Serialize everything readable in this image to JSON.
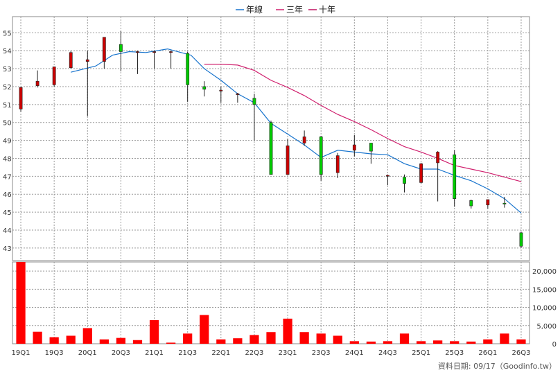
{
  "chart_data": {
    "type": "candlestick+line+bar",
    "legend": {
      "position": "top",
      "items": [
        {
          "name": "年線",
          "color": "#1874cd"
        },
        {
          "name": "三年",
          "color": "#d0206e"
        },
        {
          "name": "十年",
          "color": "#c01060"
        }
      ]
    },
    "colors": {
      "up": "#00cc00",
      "down": "#cc0000",
      "volume": "#ff0000",
      "grid": "#999999",
      "line_1y": "#1874cd",
      "line_3y": "#d0206e"
    },
    "x_ticks": [
      "19Q1",
      "19Q3",
      "20Q1",
      "20Q3",
      "21Q1",
      "21Q3",
      "22Q1",
      "22Q3",
      "23Q1",
      "23Q3",
      "24Q1",
      "24Q3",
      "25Q1",
      "25Q3",
      "26Q1",
      "26Q3"
    ],
    "price_axis": {
      "ylim": [
        42.3,
        55.9
      ],
      "ticks": [
        43,
        44,
        45,
        46,
        47,
        48,
        49,
        50,
        51,
        52,
        53,
        54,
        55
      ]
    },
    "volume_axis": {
      "ylim": [
        0,
        22500
      ],
      "ticks": [
        0,
        5000,
        10000,
        15000,
        20000
      ],
      "tick_labels": [
        "0",
        "5,000",
        "10,000",
        "15,000",
        "20,000"
      ]
    },
    "candles": [
      {
        "o": 51.95,
        "h": 51.95,
        "l": 50.6,
        "c": 50.75
      },
      {
        "o": 52.3,
        "h": 52.9,
        "l": 51.95,
        "c": 52.05
      },
      {
        "o": 53.1,
        "h": 53.1,
        "l": 52.0,
        "c": 52.1
      },
      {
        "o": 53.9,
        "h": 54.0,
        "l": 53.0,
        "c": 53.05
      },
      {
        "o": 53.5,
        "h": 54.0,
        "l": 50.35,
        "c": 53.4
      },
      {
        "o": 54.75,
        "h": 54.75,
        "l": 53.0,
        "c": 53.4
      },
      {
        "o": 53.95,
        "h": 55.1,
        "l": 52.85,
        "c": 54.35
      },
      {
        "o": 53.95,
        "h": 54.0,
        "l": 52.7,
        "c": 53.9
      },
      {
        "o": 53.95,
        "h": 54.0,
        "l": 53.0,
        "c": 53.9
      },
      {
        "o": 53.95,
        "h": 54.0,
        "l": 53.0,
        "c": 53.9
      },
      {
        "o": 52.1,
        "h": 53.95,
        "l": 51.15,
        "c": 53.85
      },
      {
        "o": 51.85,
        "h": 52.3,
        "l": 51.45,
        "c": 52.0
      },
      {
        "o": 51.8,
        "h": 52.0,
        "l": 51.1,
        "c": 51.75
      },
      {
        "o": 51.6,
        "h": 51.65,
        "l": 51.1,
        "c": 51.55
      },
      {
        "o": 51.0,
        "h": 51.6,
        "l": 49.0,
        "c": 51.35
      },
      {
        "o": 47.1,
        "h": 50.1,
        "l": 47.1,
        "c": 50.0
      },
      {
        "o": 48.7,
        "h": 49.1,
        "l": 47.1,
        "c": 47.1
      },
      {
        "o": 49.2,
        "h": 49.55,
        "l": 48.7,
        "c": 48.85
      },
      {
        "o": 47.1,
        "h": 49.25,
        "l": 46.75,
        "c": 49.2
      },
      {
        "o": 48.15,
        "h": 48.3,
        "l": 46.9,
        "c": 47.2
      },
      {
        "o": 48.75,
        "h": 49.3,
        "l": 48.1,
        "c": 48.45
      },
      {
        "o": 48.4,
        "h": 48.85,
        "l": 47.7,
        "c": 48.85
      },
      {
        "o": 47.05,
        "h": 47.1,
        "l": 46.5,
        "c": 47.0
      },
      {
        "o": 46.6,
        "h": 47.1,
        "l": 46.1,
        "c": 46.95
      },
      {
        "o": 47.7,
        "h": 47.75,
        "l": 46.6,
        "c": 46.65
      },
      {
        "o": 48.35,
        "h": 48.4,
        "l": 45.6,
        "c": 47.75
      },
      {
        "o": 45.75,
        "h": 48.45,
        "l": 45.3,
        "c": 48.2
      },
      {
        "o": 45.35,
        "h": 45.7,
        "l": 45.2,
        "c": 45.65
      },
      {
        "o": 45.7,
        "h": 45.7,
        "l": 45.2,
        "c": 45.4
      },
      {
        "o": 45.5,
        "h": 45.85,
        "l": 45.25,
        "c": 45.5
      },
      {
        "o": 43.1,
        "h": 43.9,
        "l": 43.0,
        "c": 43.85
      }
    ],
    "ma_1y": [
      {
        "i": 3,
        "v": 52.8
      },
      {
        "i": 4.5,
        "v": 53.15
      },
      {
        "i": 5.5,
        "v": 53.75
      },
      {
        "i": 6.5,
        "v": 53.95
      },
      {
        "i": 7.5,
        "v": 53.9
      },
      {
        "i": 8.8,
        "v": 54.1
      },
      {
        "i": 10.2,
        "v": 53.75
      },
      {
        "i": 11,
        "v": 53.0
      },
      {
        "i": 12,
        "v": 52.35
      },
      {
        "i": 13,
        "v": 51.6
      },
      {
        "i": 14,
        "v": 51.1
      },
      {
        "i": 15,
        "v": 49.95
      },
      {
        "i": 16,
        "v": 49.35
      },
      {
        "i": 17,
        "v": 48.75
      },
      {
        "i": 18,
        "v": 48.05
      },
      {
        "i": 19,
        "v": 48.45
      },
      {
        "i": 20,
        "v": 48.35
      },
      {
        "i": 21,
        "v": 48.25
      },
      {
        "i": 22,
        "v": 48.2
      },
      {
        "i": 23,
        "v": 47.7
      },
      {
        "i": 24,
        "v": 47.4
      },
      {
        "i": 25,
        "v": 47.4
      },
      {
        "i": 26,
        "v": 47.05
      },
      {
        "i": 27,
        "v": 46.75
      },
      {
        "i": 28,
        "v": 46.3
      },
      {
        "i": 29,
        "v": 45.75
      },
      {
        "i": 30,
        "v": 44.95
      }
    ],
    "ma_3y": [
      {
        "i": 11,
        "v": 53.25
      },
      {
        "i": 12,
        "v": 53.25
      },
      {
        "i": 13,
        "v": 53.2
      },
      {
        "i": 14,
        "v": 52.9
      },
      {
        "i": 15,
        "v": 52.35
      },
      {
        "i": 16,
        "v": 51.95
      },
      {
        "i": 17,
        "v": 51.5
      },
      {
        "i": 18,
        "v": 50.95
      },
      {
        "i": 19,
        "v": 50.45
      },
      {
        "i": 20,
        "v": 50.05
      },
      {
        "i": 21,
        "v": 49.6
      },
      {
        "i": 22,
        "v": 49.1
      },
      {
        "i": 23,
        "v": 48.65
      },
      {
        "i": 24,
        "v": 48.35
      },
      {
        "i": 25,
        "v": 48.0
      },
      {
        "i": 26,
        "v": 47.6
      },
      {
        "i": 27,
        "v": 47.4
      },
      {
        "i": 28,
        "v": 47.2
      },
      {
        "i": 29,
        "v": 46.95
      },
      {
        "i": 30,
        "v": 46.7
      }
    ],
    "volume": [
      22500,
      3300,
      1800,
      2200,
      4300,
      1200,
      1600,
      1000,
      6500,
      300,
      2800,
      7900,
      1200,
      1500,
      2400,
      3200,
      6900,
      3200,
      2800,
      2200,
      700,
      600,
      700,
      2800,
      700,
      900,
      700,
      600,
      1200,
      2800,
      1200
    ],
    "footer": "資料日期: 09/17（Goodinfo.tw）"
  }
}
